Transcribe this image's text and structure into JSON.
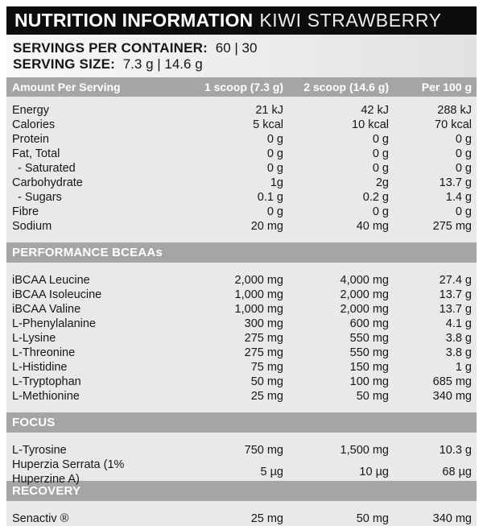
{
  "header": {
    "title": "NUTRITION INFORMATION",
    "flavor": "KIWI STRAWBERRY"
  },
  "servings": {
    "per_container_label": "SERVINGS PER CONTAINER:",
    "per_container_value": "60 | 30",
    "serving_size_label": "SERVING SIZE:",
    "serving_size_value": "7.3 g | 14.6 g"
  },
  "table": {
    "columns": [
      "Amount Per Serving",
      "1 scoop (7.3 g)",
      "2 scoop (14.6 g)",
      "Per 100 g"
    ],
    "sections": [
      {
        "title": "",
        "rows": [
          {
            "label": "Energy",
            "scoop1": "21 kJ",
            "scoop2": "42 kJ",
            "per100": "288 kJ",
            "indent": false
          },
          {
            "label": "Calories",
            "scoop1": "5 kcal",
            "scoop2": "10 kcal",
            "per100": "70 kcal",
            "indent": false
          },
          {
            "label": "Protein",
            "scoop1": "0 g",
            "scoop2": "0 g",
            "per100": "0 g",
            "indent": false
          },
          {
            "label": "Fat, Total",
            "scoop1": "0 g",
            "scoop2": "0 g",
            "per100": "0 g",
            "indent": false
          },
          {
            "label": "- Saturated",
            "scoop1": "0 g",
            "scoop2": "0 g",
            "per100": "0 g",
            "indent": true
          },
          {
            "label": "Carbohydrate",
            "scoop1": "1g",
            "scoop2": "2g",
            "per100": "13.7 g",
            "indent": false
          },
          {
            "label": "- Sugars",
            "scoop1": "0.1 g",
            "scoop2": "0.2 g",
            "per100": "1.4 g",
            "indent": true
          },
          {
            "label": "Fibre",
            "scoop1": "0 g",
            "scoop2": "0 g",
            "per100": "0 g",
            "indent": false
          },
          {
            "label": "Sodium",
            "scoop1": "20 mg",
            "scoop2": "40 mg",
            "per100": "275 mg",
            "indent": false
          }
        ]
      },
      {
        "title": "PERFORMANCE BCEAAs",
        "rows": [
          {
            "label": "iBCAA Leucine",
            "scoop1": "2,000 mg",
            "scoop2": "4,000 mg",
            "per100": "27.4 g",
            "indent": false
          },
          {
            "label": "iBCAA Isoleucine",
            "scoop1": "1,000 mg",
            "scoop2": "2,000 mg",
            "per100": "13.7 g",
            "indent": false
          },
          {
            "label": "iBCAA Valine",
            "scoop1": "1,000 mg",
            "scoop2": "2,000 mg",
            "per100": "13.7 g",
            "indent": false
          },
          {
            "label": "L-Phenylalanine",
            "scoop1": "300 mg",
            "scoop2": "600 mg",
            "per100": "4.1 g",
            "indent": false
          },
          {
            "label": "L-Lysine",
            "scoop1": "275 mg",
            "scoop2": "550 mg",
            "per100": "3.8 g",
            "indent": false
          },
          {
            "label": "L-Threonine",
            "scoop1": "275 mg",
            "scoop2": "550 mg",
            "per100": "3.8 g",
            "indent": false
          },
          {
            "label": "L-Histidine",
            "scoop1": "75 mg",
            "scoop2": "150 mg",
            "per100": "1 g",
            "indent": false
          },
          {
            "label": "L-Tryptophan",
            "scoop1": "50 mg",
            "scoop2": "100 mg",
            "per100": "685 mg",
            "indent": false
          },
          {
            "label": "L-Methionine",
            "scoop1": "25 mg",
            "scoop2": "50 mg",
            "per100": "340 mg",
            "indent": false
          }
        ]
      },
      {
        "title": "FOCUS",
        "rows": [
          {
            "label": "L-Tyrosine",
            "scoop1": "750 mg",
            "scoop2": "1,500 mg",
            "per100": "10.3 g",
            "indent": false
          },
          {
            "label": "Huperzia Serrata (1% Huperzine A)",
            "scoop1": "5 µg",
            "scoop2": "10 µg",
            "per100": "68 µg",
            "indent": false
          }
        ]
      },
      {
        "title": "RECOVERY",
        "rows": [
          {
            "label": "Senactiv ®",
            "scoop1": "25 mg",
            "scoop2": "50 mg",
            "per100": "340 mg",
            "indent": false
          }
        ]
      }
    ]
  },
  "colors": {
    "bar_black": "#0d0d0d",
    "bar_gray": "#a5a5a5",
    "panel_bg": "#e9e9e9",
    "text_dark": "#161616",
    "text_light": "#ffffff"
  }
}
